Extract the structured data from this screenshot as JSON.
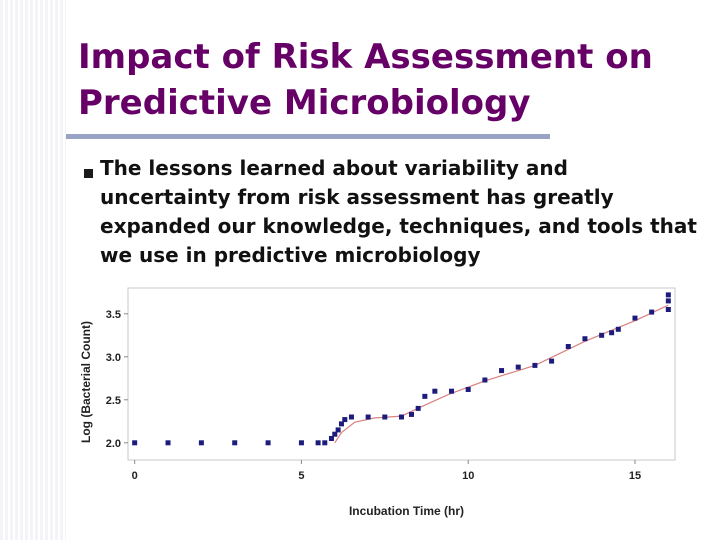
{
  "slide": {
    "title": "Impact of Risk Assessment on Predictive Microbiology",
    "bullet": "The lessons learned about variability and uncertainty from risk assessment has greatly expanded our knowledge, techniques, and tools that we use in predictive microbiology",
    "title_color": "#660066",
    "accent_bar_color": "#99a3c4"
  },
  "chart_data": {
    "type": "scatter",
    "xlabel": "Incubation Time (hr)",
    "ylabel": "Log (Bacterial Count)",
    "xlim": [
      -0.2,
      16.2
    ],
    "ylim": [
      1.8,
      3.8
    ],
    "xticks": [
      0,
      5,
      10,
      15
    ],
    "yticks": [
      2.0,
      2.5,
      3.0,
      3.5
    ],
    "xtick_labels": [
      "0",
      "5",
      "10",
      "15"
    ],
    "ytick_labels": [
      "2.0",
      "2.5",
      "3.0",
      "3.5"
    ],
    "grid": false,
    "marker_color": "#1c1c7c",
    "series": [
      {
        "points": [
          [
            0.0,
            2.0
          ],
          [
            1.0,
            2.0
          ],
          [
            2.0,
            2.0
          ],
          [
            3.0,
            2.0
          ],
          [
            4.0,
            2.0
          ],
          [
            5.0,
            2.0
          ],
          [
            5.5,
            2.0
          ],
          [
            5.7,
            2.0
          ],
          [
            5.9,
            2.05
          ],
          [
            6.0,
            2.1
          ],
          [
            6.1,
            2.15
          ],
          [
            6.2,
            2.22
          ],
          [
            6.3,
            2.27
          ],
          [
            6.5,
            2.3
          ],
          [
            7.0,
            2.3
          ],
          [
            7.5,
            2.3
          ],
          [
            8.0,
            2.3
          ],
          [
            8.3,
            2.33
          ],
          [
            8.5,
            2.4
          ],
          [
            8.7,
            2.54
          ],
          [
            9.0,
            2.6
          ],
          [
            9.5,
            2.6
          ],
          [
            10.0,
            2.62
          ],
          [
            10.5,
            2.73
          ],
          [
            11.0,
            2.84
          ],
          [
            11.5,
            2.88
          ],
          [
            12.0,
            2.9
          ],
          [
            12.5,
            2.95
          ],
          [
            13.0,
            3.12
          ],
          [
            13.5,
            3.21
          ],
          [
            14.0,
            3.25
          ],
          [
            14.3,
            3.28
          ],
          [
            14.5,
            3.32
          ],
          [
            15.0,
            3.45
          ],
          [
            15.5,
            3.52
          ],
          [
            16.0,
            3.55
          ],
          [
            16.0,
            3.65
          ],
          [
            16.0,
            3.72
          ]
        ]
      }
    ],
    "fit_line": [
      [
        6.0,
        2.0
      ],
      [
        6.2,
        2.12
      ],
      [
        6.6,
        2.24
      ],
      [
        7.2,
        2.29
      ],
      [
        8.0,
        2.31
      ],
      [
        8.6,
        2.42
      ],
      [
        9.4,
        2.56
      ],
      [
        10.5,
        2.72
      ],
      [
        12.0,
        2.9
      ],
      [
        13.5,
        3.18
      ],
      [
        15.0,
        3.42
      ],
      [
        16.0,
        3.6
      ]
    ],
    "fit_line_color": "#d98080"
  }
}
